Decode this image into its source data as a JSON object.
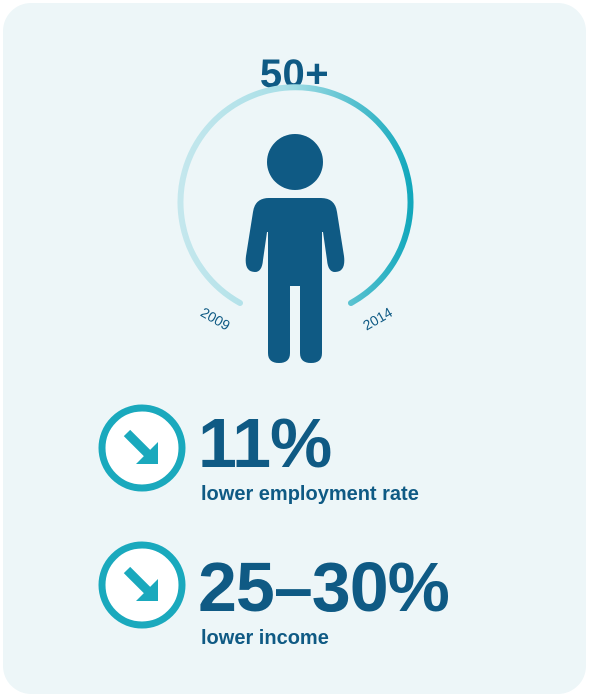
{
  "title": "50+",
  "arc": {
    "start_year": "2009",
    "end_year": "2014",
    "light_color": "#b8e3ea",
    "dark_color": "#1aa9bd"
  },
  "figure_color": "#0f5a84",
  "stats": [
    {
      "value": "11%",
      "label": "lower employment rate",
      "icon": "arrow-down-right-circle-icon"
    },
    {
      "value": "25–30%",
      "label": "lower income",
      "icon": "arrow-down-right-circle-icon"
    }
  ],
  "colors": {
    "background": "#edf6f8",
    "text": "#0f5a84",
    "accent": "#1aa9bd"
  }
}
